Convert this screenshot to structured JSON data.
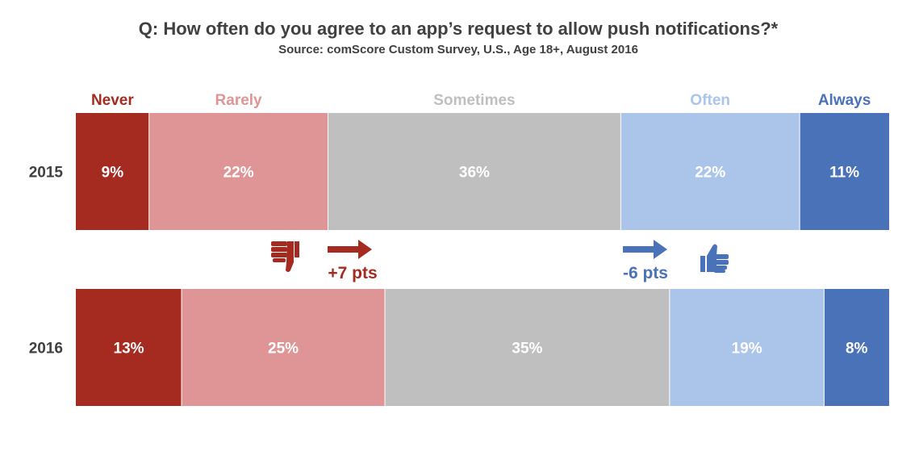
{
  "chart_data": {
    "type": "bar",
    "orientation": "horizontal",
    "stacked": true,
    "stack_mode": "percent",
    "title": "Q: How often do you agree to an app’s request to allow push notifications?*",
    "subtitle": "Source: comScore Custom Survey, U.S., Age 18+, August 2016",
    "categories": [
      "2015",
      "2016"
    ],
    "series": [
      {
        "name": "Never",
        "values": [
          9,
          13
        ],
        "labels": [
          "9%",
          "13%"
        ],
        "color": "#a52a20",
        "label_color": "#a52a20"
      },
      {
        "name": "Rarely",
        "values": [
          22,
          25
        ],
        "labels": [
          "22%",
          "25%"
        ],
        "color": "#df9596",
        "label_color": "#df9596"
      },
      {
        "name": "Sometimes",
        "values": [
          36,
          35
        ],
        "labels": [
          "36%",
          "35%"
        ],
        "color": "#bfbfbf",
        "label_color": "#bfbfbf"
      },
      {
        "name": "Often",
        "values": [
          22,
          19
        ],
        "labels": [
          "22%",
          "19%"
        ],
        "color": "#abc5ea",
        "label_color": "#abc5ea"
      },
      {
        "name": "Always",
        "values": [
          11,
          8
        ],
        "labels": [
          "11%",
          "8%"
        ],
        "color": "#4a72b9",
        "label_color": "#4a72b9"
      }
    ],
    "legend": "top",
    "grid": false,
    "annotations": [
      {
        "text": "+7 pts",
        "color": "#a52a20",
        "icon": "thumbs-down-icon",
        "arrow": "right-arrow-icon"
      },
      {
        "text": "-6 pts",
        "color": "#4a72b9",
        "icon": "thumbs-up-icon",
        "arrow": "right-arrow-icon"
      }
    ]
  }
}
